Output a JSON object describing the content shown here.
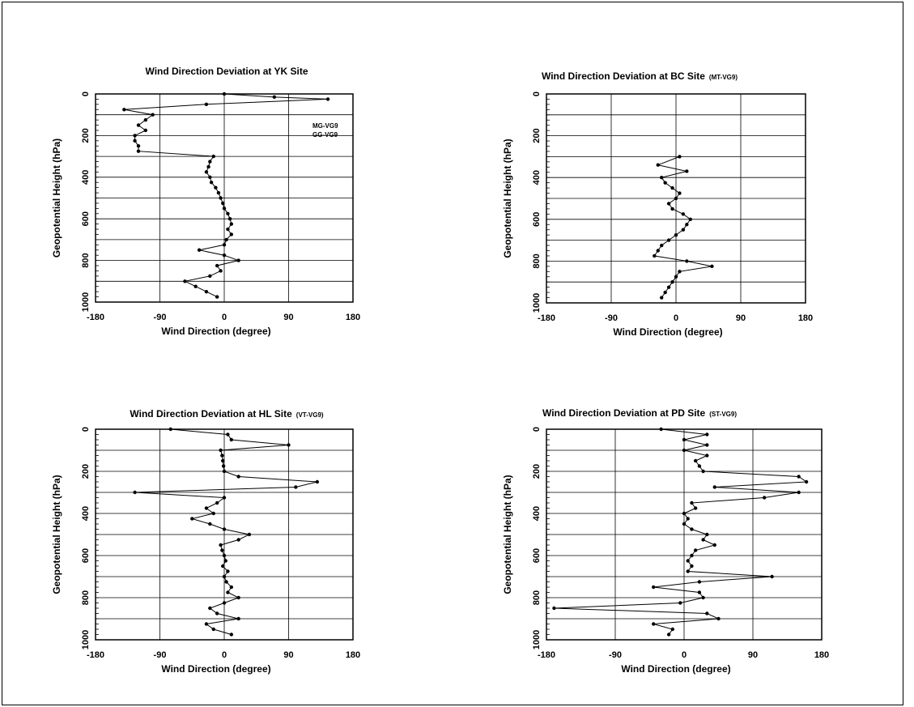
{
  "chart_data": [
    {
      "type": "line",
      "title": "Wind Direction Deviation at YK Site",
      "subtitle": "",
      "xlabel": "Wind Direction (degree)",
      "ylabel": "Geopotential Height (hPa)",
      "xlim": [
        -180,
        180
      ],
      "ylim": [
        1000,
        0
      ],
      "xticks": [
        "-180",
        "-90",
        "0",
        "90",
        "180"
      ],
      "yticks": [
        "0",
        "200",
        "400",
        "600",
        "800",
        "1000"
      ],
      "grid": true,
      "legend": [
        "MG-VG9",
        "GG-VG9"
      ],
      "legend_position": "top-right",
      "series": [
        {
          "y": [
            0,
            15,
            25,
            50,
            75,
            100,
            125,
            150,
            175,
            200,
            225,
            250,
            275,
            300,
            325,
            350,
            375,
            400,
            425,
            450,
            475,
            500,
            525,
            550,
            575,
            600,
            625,
            650,
            675,
            700,
            725,
            750,
            775,
            800,
            825,
            850,
            875,
            900,
            925,
            950,
            975
          ],
          "x": [
            0,
            70,
            145,
            -25,
            -140,
            -100,
            -110,
            -120,
            -110,
            -125,
            -125,
            -120,
            -120,
            -15,
            -20,
            -22,
            -25,
            -20,
            -18,
            -12,
            -8,
            -5,
            -2,
            0,
            5,
            8,
            10,
            5,
            10,
            3,
            0,
            -35,
            0,
            20,
            -10,
            -5,
            -20,
            -55,
            -40,
            -25,
            -10
          ]
        }
      ]
    },
    {
      "type": "line",
      "title": "Wind Direction Deviation at BC Site",
      "subtitle": "(MT-VG9)",
      "xlabel": "Wind Direction (degree)",
      "ylabel": "Geopotential Height (hPa)",
      "xlim": [
        -180,
        180
      ],
      "ylim": [
        1000,
        0
      ],
      "xticks": [
        "-180",
        "-90",
        "0",
        "90",
        "180"
      ],
      "yticks": [
        "0",
        "200",
        "400",
        "600",
        "800",
        "1000"
      ],
      "grid": true,
      "series": [
        {
          "y": [
            300,
            340,
            370,
            400,
            425,
            450,
            475,
            500,
            525,
            550,
            575,
            600,
            625,
            650,
            675,
            700,
            725,
            750,
            775,
            800,
            825,
            850,
            875,
            900,
            925,
            950,
            975
          ],
          "x": [
            5,
            -25,
            15,
            -20,
            -15,
            -5,
            5,
            0,
            -10,
            -5,
            10,
            20,
            15,
            10,
            0,
            -10,
            -20,
            -25,
            -30,
            15,
            50,
            5,
            0,
            -5,
            -10,
            -15,
            -20
          ]
        }
      ]
    },
    {
      "type": "line",
      "title": "Wind Direction Deviation at HL Site",
      "subtitle": "(VT-VG9)",
      "xlabel": "Wind Direction (degree)",
      "ylabel": "Geopotential Height (hPa)",
      "xlim": [
        -180,
        180
      ],
      "ylim": [
        1000,
        0
      ],
      "xticks": [
        "-180",
        "-90",
        "0",
        "90",
        "180"
      ],
      "yticks": [
        "0",
        "200",
        "400",
        "600",
        "800",
        "1000"
      ],
      "grid": true,
      "series": [
        {
          "y": [
            0,
            25,
            50,
            75,
            100,
            125,
            150,
            175,
            200,
            225,
            250,
            275,
            300,
            325,
            350,
            375,
            400,
            425,
            450,
            475,
            500,
            525,
            550,
            575,
            600,
            625,
            650,
            675,
            700,
            725,
            750,
            775,
            800,
            825,
            850,
            875,
            900,
            925,
            950,
            975
          ],
          "x": [
            -75,
            5,
            10,
            90,
            -5,
            -3,
            -2,
            -1,
            0,
            20,
            130,
            100,
            -125,
            0,
            -10,
            -25,
            -15,
            -45,
            -20,
            0,
            35,
            20,
            -5,
            -3,
            0,
            2,
            -2,
            5,
            0,
            3,
            10,
            5,
            20,
            0,
            -20,
            -10,
            20,
            -25,
            -15,
            10
          ]
        }
      ]
    },
    {
      "type": "line",
      "title": "Wind Direction Deviation at PD Site",
      "subtitle": "(ST-VG9)",
      "xlabel": "Wind Direction (degree)",
      "ylabel": "Geopotential Height (hPa)",
      "xlim": [
        -180,
        180
      ],
      "ylim": [
        1000,
        0
      ],
      "xticks": [
        "-180",
        "-90",
        "0",
        "90",
        "180"
      ],
      "yticks": [
        "0",
        "200",
        "400",
        "600",
        "800",
        "1000"
      ],
      "grid": true,
      "series": [
        {
          "y": [
            0,
            25,
            50,
            75,
            100,
            125,
            150,
            175,
            200,
            225,
            250,
            275,
            300,
            325,
            350,
            375,
            400,
            425,
            450,
            475,
            500,
            525,
            550,
            575,
            600,
            625,
            650,
            675,
            700,
            725,
            750,
            775,
            800,
            825,
            850,
            875,
            900,
            925,
            950,
            975
          ],
          "x": [
            -30,
            30,
            0,
            30,
            0,
            30,
            15,
            20,
            25,
            150,
            160,
            40,
            150,
            105,
            10,
            15,
            0,
            5,
            0,
            10,
            30,
            25,
            40,
            15,
            10,
            5,
            10,
            5,
            115,
            20,
            -40,
            20,
            25,
            -5,
            -170,
            30,
            45,
            -40,
            -15,
            -20
          ]
        }
      ]
    }
  ]
}
